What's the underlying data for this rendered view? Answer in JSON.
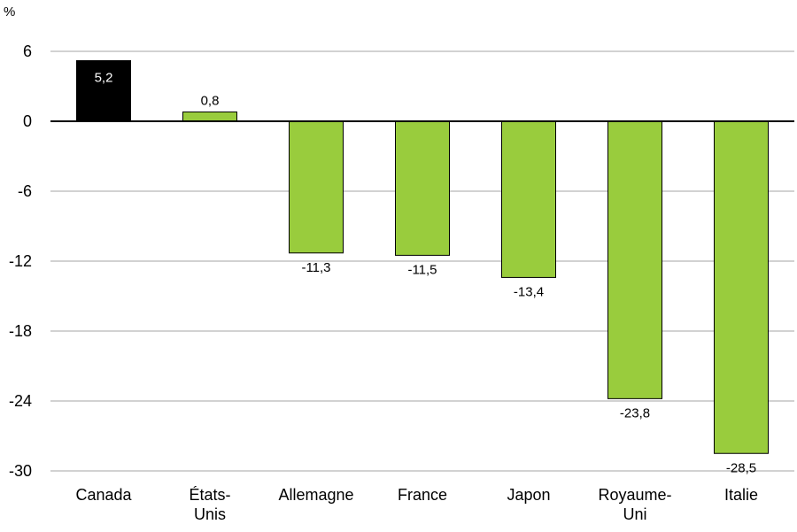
{
  "chart_data": {
    "type": "bar",
    "ylabel": "%",
    "ylim": [
      -30,
      6
    ],
    "yticks": [
      6,
      0,
      -6,
      -12,
      -18,
      -24,
      -30
    ],
    "ytick_labels": [
      "6",
      "0",
      "-6",
      "-12",
      "-18",
      "-24",
      "-30"
    ],
    "grid": true,
    "legend": "none",
    "categories": [
      [
        "Canada"
      ],
      [
        "États-",
        "Unis"
      ],
      [
        "Allemagne"
      ],
      [
        "France"
      ],
      [
        "Japon"
      ],
      [
        "Royaume-",
        "Uni"
      ],
      [
        "Italie"
      ]
    ],
    "values": [
      5.2,
      0.8,
      -11.3,
      -11.5,
      -13.4,
      -23.8,
      -28.5
    ],
    "value_labels": [
      "5,2",
      "0,8",
      "-11,3",
      "-11,5",
      "-13,4",
      "-23,8",
      "-28,5"
    ],
    "colors": {
      "highlight": "#000000",
      "bar": "#99CC3D",
      "bar_border": "#000000",
      "grid": "#A6A6A6",
      "axis": "#000000"
    },
    "highlight_index": 0
  }
}
